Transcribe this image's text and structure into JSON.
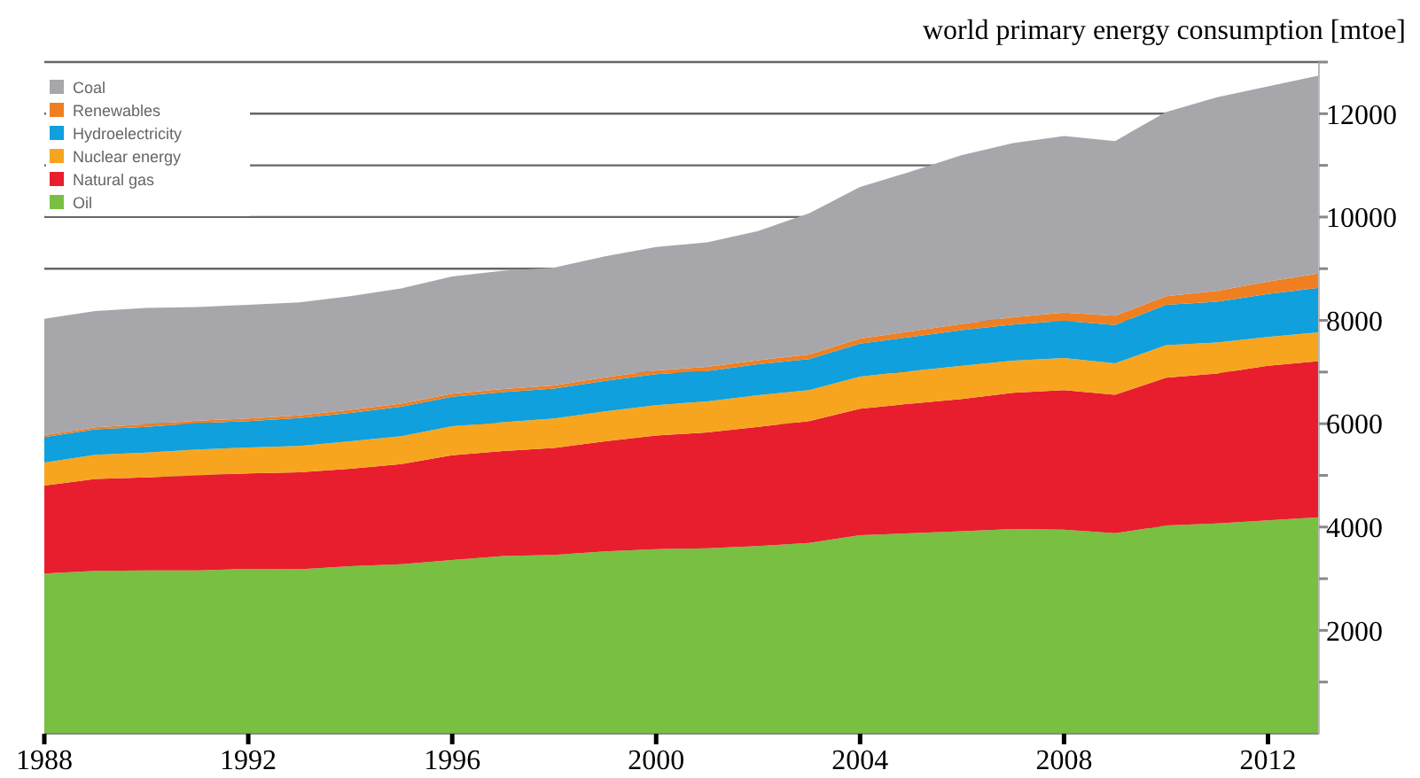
{
  "chart_data": {
    "type": "area",
    "stacked": true,
    "title": "world primary energy consumption [mtoe]",
    "x": [
      1988,
      1989,
      1990,
      1991,
      1992,
      1993,
      1994,
      1995,
      1996,
      1997,
      1998,
      1999,
      2000,
      2001,
      2002,
      2003,
      2004,
      2005,
      2006,
      2007,
      2008,
      2009,
      2010,
      2011,
      2012,
      2013
    ],
    "series": [
      {
        "name": "Oil",
        "color": "#78bf42",
        "values": [
          3100,
          3150,
          3160,
          3160,
          3190,
          3180,
          3240,
          3280,
          3360,
          3440,
          3460,
          3530,
          3570,
          3590,
          3630,
          3690,
          3840,
          3880,
          3920,
          3960,
          3950,
          3880,
          4030,
          4070,
          4130,
          4190
        ]
      },
      {
        "name": "Natural gas",
        "color": "#e81e2e",
        "values": [
          1700,
          1780,
          1800,
          1840,
          1850,
          1880,
          1890,
          1940,
          2030,
          2030,
          2070,
          2130,
          2200,
          2240,
          2310,
          2360,
          2450,
          2510,
          2560,
          2640,
          2700,
          2680,
          2860,
          2900,
          2990,
          3020
        ]
      },
      {
        "name": "Nuclear energy",
        "color": "#f7a51e",
        "values": [
          450,
          470,
          480,
          500,
          500,
          510,
          530,
          540,
          560,
          560,
          570,
          580,
          590,
          600,
          610,
          600,
          620,
          630,
          640,
          620,
          620,
          610,
          630,
          600,
          560,
          560
        ]
      },
      {
        "name": "Hydroelectricity",
        "color": "#0fa0dd",
        "values": [
          490,
          490,
          500,
          510,
          510,
          540,
          550,
          570,
          570,
          580,
          580,
          590,
          600,
          590,
          600,
          600,
          640,
          660,
          690,
          700,
          720,
          740,
          780,
          790,
          830,
          860
        ]
      },
      {
        "name": "Renewables",
        "color": "#f07f22",
        "values": [
          40,
          40,
          50,
          50,
          50,
          50,
          60,
          60,
          60,
          60,
          60,
          70,
          70,
          80,
          80,
          90,
          100,
          110,
          120,
          140,
          160,
          180,
          170,
          210,
          240,
          280
        ]
      },
      {
        "name": "Coal",
        "color": "#a7a6ab",
        "values": [
          2250,
          2250,
          2250,
          2200,
          2200,
          2190,
          2200,
          2230,
          2270,
          2290,
          2280,
          2340,
          2390,
          2410,
          2500,
          2730,
          2930,
          3090,
          3270,
          3370,
          3420,
          3380,
          3560,
          3750,
          3780,
          3830
        ]
      }
    ],
    "xlim": [
      1988,
      2013
    ],
    "xticks": [
      1988,
      1992,
      1996,
      2000,
      2004,
      2008,
      2012
    ],
    "ylim": [
      0,
      13000
    ],
    "yticks": [
      {
        "value": 1000,
        "label": null
      },
      2000,
      {
        "value": 3000,
        "label": null
      },
      4000,
      {
        "value": 5000,
        "label": null
      },
      6000,
      {
        "value": 7000,
        "label": null
      },
      8000,
      {
        "value": 9000,
        "label": null
      },
      10000,
      {
        "value": 11000,
        "label": null
      },
      12000,
      {
        "value": 13000,
        "label": null
      }
    ],
    "grid": "y",
    "legend": "top left"
  }
}
